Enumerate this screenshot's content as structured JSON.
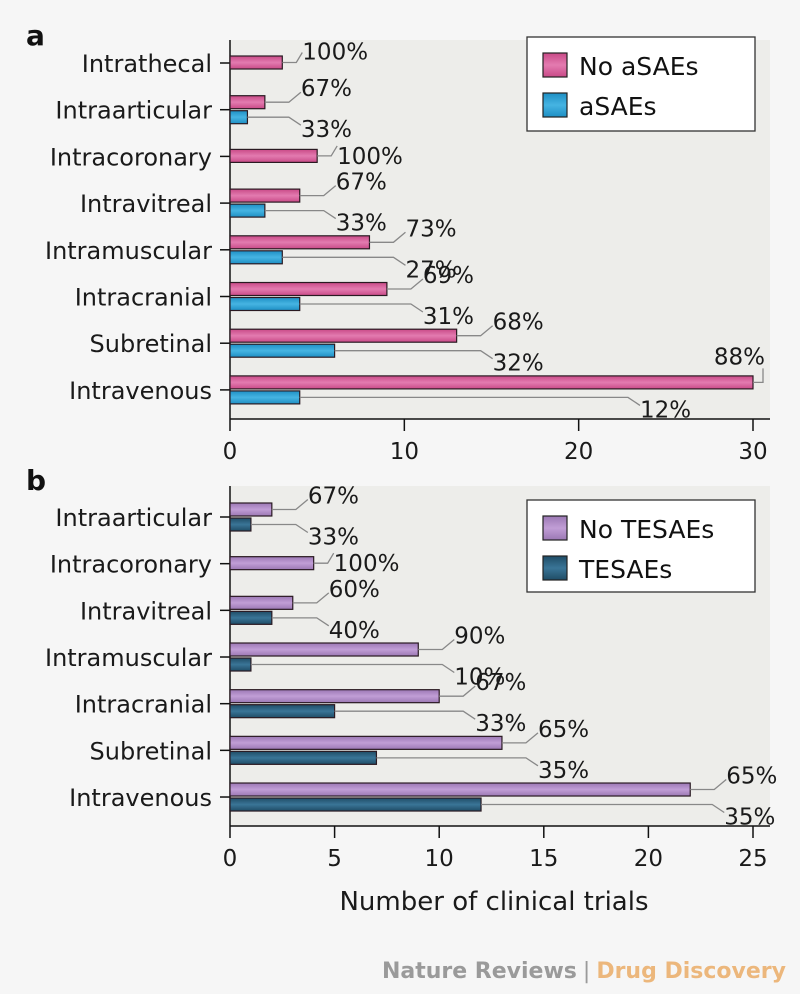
{
  "chart_data": [
    {
      "type": "bar",
      "orientation": "horizontal",
      "panel_label": "a",
      "categories": [
        "Intrathecal",
        "Intraarticular",
        "Intracoronary",
        "Intravitreal",
        "Intramuscular",
        "Intracranial",
        "Subretinal",
        "Intravenous"
      ],
      "series": [
        {
          "name": "No aSAEs",
          "color": "#d9609c",
          "values": [
            3,
            2,
            5,
            4,
            8,
            9,
            13,
            30
          ],
          "labels": [
            "100%",
            "67%",
            "100%",
            "67%",
            "73%",
            "69%",
            "68%",
            "88%"
          ]
        },
        {
          "name": "aSAEs",
          "color": "#2aa2d6",
          "values": [
            null,
            1,
            null,
            2,
            3,
            4,
            6,
            4
          ],
          "labels": [
            null,
            "33%",
            null,
            "33%",
            "27%",
            "31%",
            "32%",
            "12%"
          ]
        }
      ],
      "xlim": [
        0,
        31
      ],
      "xticks": [
        0,
        10,
        20,
        30
      ],
      "xlabel": "",
      "legend": "top-right"
    },
    {
      "type": "bar",
      "orientation": "horizontal",
      "panel_label": "b",
      "categories": [
        "Intraarticular",
        "Intracoronary",
        "Intravitreal",
        "Intramuscular",
        "Intracranial",
        "Subretinal",
        "Intravenous"
      ],
      "series": [
        {
          "name": "No TESAEs",
          "color": "#ae8ac6",
          "values": [
            2,
            4,
            3,
            9,
            10,
            13,
            22
          ],
          "labels": [
            "67%",
            "100%",
            "60%",
            "90%",
            "67%",
            "65%",
            "65%"
          ]
        },
        {
          "name": "TESAEs",
          "color": "#2c5f7c",
          "values": [
            1,
            null,
            2,
            1,
            5,
            7,
            12
          ],
          "labels": [
            "33%",
            null,
            "40%",
            "10%",
            "33%",
            "35%",
            "35%"
          ]
        }
      ],
      "xlim": [
        0,
        25.8
      ],
      "xticks": [
        0,
        5,
        10,
        15,
        20,
        25
      ],
      "xlabel": "Number of clinical trials",
      "legend": "top-right"
    }
  ],
  "footer": {
    "publisher": "Nature Reviews",
    "separator": "|",
    "journal": "Drug Discovery"
  }
}
